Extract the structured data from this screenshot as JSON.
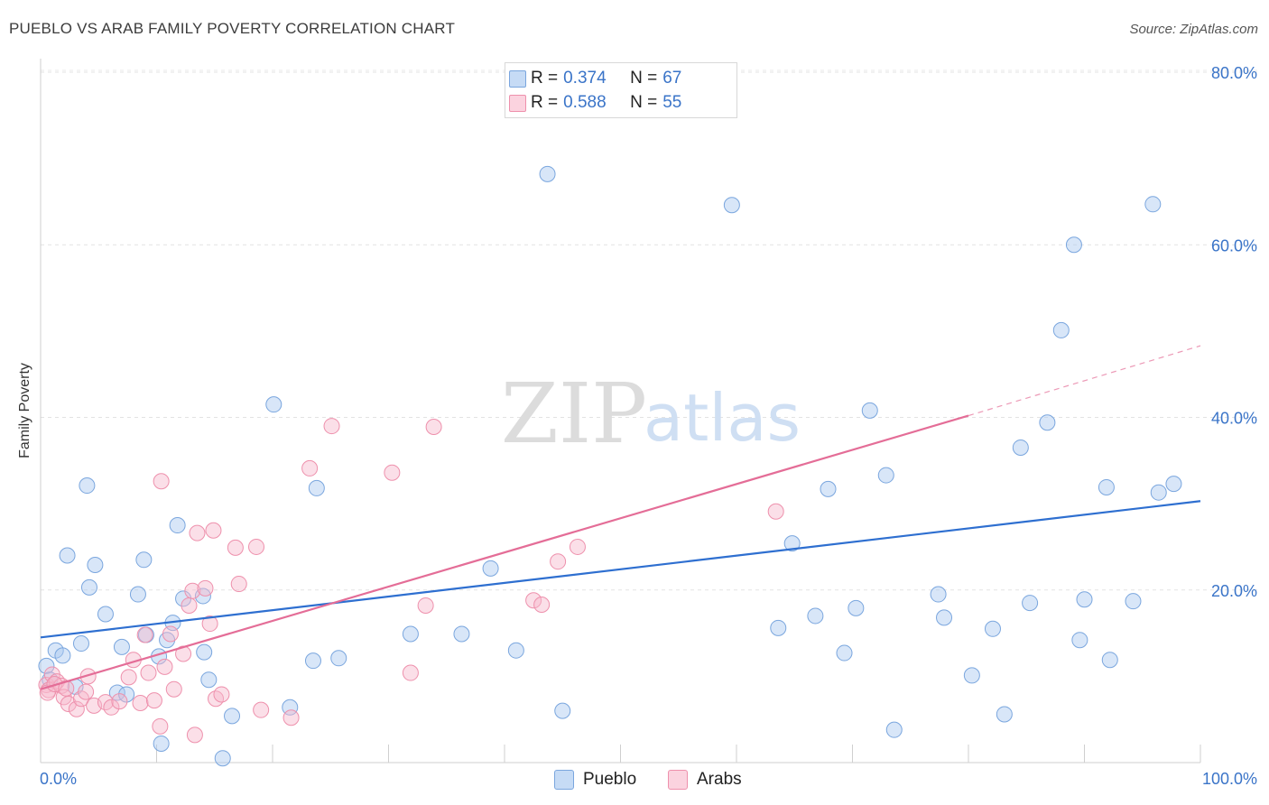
{
  "title": "PUEBLO VS ARAB FAMILY POVERTY CORRELATION CHART",
  "source": "Source: ZipAtlas.com",
  "watermark": {
    "zip": "ZIP",
    "atlas": "atlas"
  },
  "legend": {
    "rows": [
      {
        "r_label": "R =",
        "r_value": "0.374",
        "n_label": "N =",
        "n_value": "67",
        "color": "#a9c8f0"
      },
      {
        "r_label": "R =",
        "r_value": "0.588",
        "n_label": "N =",
        "n_value": "55",
        "color": "#f7b8cc"
      }
    ]
  },
  "bottom_legend": [
    {
      "label": "Pueblo",
      "color": "#a9c8f0"
    },
    {
      "label": "Arabs",
      "color": "#f7b8cc"
    }
  ],
  "chart_data": {
    "type": "scatter",
    "ylabel": "Family Poverty",
    "xlabel": "",
    "xlim": [
      0,
      100
    ],
    "ylim": [
      0,
      85
    ],
    "x_tick_labels": [
      "0.0%",
      "100.0%"
    ],
    "y_ticks": [
      20,
      40,
      60,
      80
    ],
    "y_tick_labels": [
      "20.0%",
      "40.0%",
      "60.0%",
      "80.0%"
    ],
    "grid": "horizontal dashed",
    "legend_placement": "top-center",
    "series": [
      {
        "name": "Pueblo",
        "color": "#a9c8f0",
        "stroke": "#7aa6de",
        "trend": {
          "x0": 0,
          "y0": 14.5,
          "x1": 100,
          "y1": 30.3,
          "color": "#2e6fd0"
        },
        "points": [
          [
            0.5,
            11.2
          ],
          [
            1.3,
            13.0
          ],
          [
            1.9,
            12.4
          ],
          [
            2.3,
            24.0
          ],
          [
            3.5,
            13.8
          ],
          [
            4.0,
            32.1
          ],
          [
            4.2,
            20.3
          ],
          [
            4.7,
            22.9
          ],
          [
            5.6,
            17.2
          ],
          [
            6.6,
            8.1
          ],
          [
            7.4,
            7.9
          ],
          [
            7.0,
            13.4
          ],
          [
            8.4,
            19.5
          ],
          [
            8.9,
            23.5
          ],
          [
            9.1,
            14.8
          ],
          [
            10.2,
            12.3
          ],
          [
            10.4,
            2.2
          ],
          [
            10.9,
            14.2
          ],
          [
            11.4,
            16.2
          ],
          [
            11.8,
            27.5
          ],
          [
            12.3,
            19.0
          ],
          [
            14.0,
            19.3
          ],
          [
            14.1,
            12.8
          ],
          [
            14.5,
            9.6
          ],
          [
            15.7,
            0.5
          ],
          [
            16.5,
            5.4
          ],
          [
            20.1,
            41.5
          ],
          [
            21.5,
            6.4
          ],
          [
            23.5,
            11.8
          ],
          [
            23.8,
            31.8
          ],
          [
            25.7,
            12.1
          ],
          [
            31.9,
            14.9
          ],
          [
            36.3,
            14.9
          ],
          [
            38.8,
            22.5
          ],
          [
            41.0,
            13.0
          ],
          [
            43.7,
            68.2
          ],
          [
            45.0,
            6.0
          ],
          [
            59.6,
            64.6
          ],
          [
            63.6,
            15.6
          ],
          [
            64.8,
            25.4
          ],
          [
            66.8,
            17.0
          ],
          [
            67.9,
            31.7
          ],
          [
            69.3,
            12.7
          ],
          [
            70.3,
            17.9
          ],
          [
            71.5,
            40.8
          ],
          [
            72.9,
            33.3
          ],
          [
            73.6,
            3.8
          ],
          [
            77.4,
            19.5
          ],
          [
            77.9,
            16.8
          ],
          [
            80.3,
            10.1
          ],
          [
            82.1,
            15.5
          ],
          [
            83.1,
            5.6
          ],
          [
            84.5,
            36.5
          ],
          [
            85.3,
            18.5
          ],
          [
            86.8,
            39.4
          ],
          [
            88.0,
            50.1
          ],
          [
            89.1,
            60.0
          ],
          [
            89.6,
            14.2
          ],
          [
            90.0,
            18.9
          ],
          [
            91.9,
            31.9
          ],
          [
            92.2,
            11.9
          ],
          [
            94.2,
            18.7
          ],
          [
            95.9,
            64.7
          ],
          [
            96.4,
            31.3
          ],
          [
            97.7,
            32.3
          ],
          [
            0.8,
            9.6
          ],
          [
            3.0,
            8.8
          ]
        ]
      },
      {
        "name": "Arabs",
        "color": "#f7b8cc",
        "stroke": "#ee90ac",
        "trend": {
          "x0": 0,
          "y0": 8.5,
          "x1": 80,
          "y1": 40.2,
          "dashed_x1": 100,
          "dashed_y1": 48.3,
          "color": "#e46d97"
        },
        "points": [
          [
            0.5,
            9.0
          ],
          [
            0.7,
            8.4
          ],
          [
            1.0,
            10.2
          ],
          [
            1.4,
            9.4
          ],
          [
            1.8,
            8.9
          ],
          [
            2.0,
            7.6
          ],
          [
            2.4,
            6.8
          ],
          [
            3.1,
            6.2
          ],
          [
            3.5,
            7.4
          ],
          [
            3.9,
            8.2
          ],
          [
            4.1,
            10.0
          ],
          [
            4.6,
            6.6
          ],
          [
            5.6,
            7.0
          ],
          [
            6.1,
            6.4
          ],
          [
            6.8,
            7.1
          ],
          [
            7.6,
            9.9
          ],
          [
            8.0,
            11.9
          ],
          [
            8.6,
            6.9
          ],
          [
            9.0,
            14.8
          ],
          [
            9.3,
            10.4
          ],
          [
            9.8,
            7.2
          ],
          [
            10.3,
            4.2
          ],
          [
            10.7,
            11.1
          ],
          [
            11.2,
            14.9
          ],
          [
            11.5,
            8.5
          ],
          [
            12.3,
            12.6
          ],
          [
            12.8,
            18.2
          ],
          [
            13.1,
            19.9
          ],
          [
            13.5,
            26.6
          ],
          [
            14.2,
            20.2
          ],
          [
            14.6,
            16.1
          ],
          [
            15.1,
            7.4
          ],
          [
            15.6,
            7.9
          ],
          [
            16.8,
            24.9
          ],
          [
            17.1,
            20.7
          ],
          [
            18.6,
            25.0
          ],
          [
            19.0,
            6.1
          ],
          [
            21.6,
            5.2
          ],
          [
            23.2,
            34.1
          ],
          [
            25.1,
            39.0
          ],
          [
            30.3,
            33.6
          ],
          [
            31.9,
            10.4
          ],
          [
            33.2,
            18.2
          ],
          [
            33.9,
            38.9
          ],
          [
            42.5,
            18.8
          ],
          [
            43.2,
            18.3
          ],
          [
            44.6,
            23.3
          ],
          [
            46.3,
            25.0
          ],
          [
            63.4,
            29.1
          ],
          [
            0.6,
            8.1
          ],
          [
            1.2,
            9.1
          ],
          [
            2.2,
            8.6
          ],
          [
            13.3,
            3.2
          ],
          [
            10.4,
            32.6
          ],
          [
            14.9,
            26.9
          ]
        ]
      }
    ]
  }
}
